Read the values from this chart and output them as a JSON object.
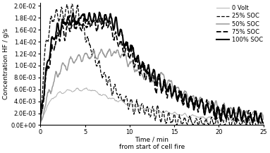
{
  "xlabel": "Time / min\nfrom start of cell fire",
  "ylabel": "Concentration HF / g/s",
  "xlim": [
    0,
    25
  ],
  "ylim": [
    0,
    0.0205
  ],
  "xticks": [
    0,
    5,
    10,
    15,
    20,
    25
  ],
  "ytick_vals": [
    0.0,
    0.002,
    0.004,
    0.006,
    0.008,
    0.01,
    0.012,
    0.014,
    0.016,
    0.018,
    0.02
  ],
  "ytick_labels": [
    "0.0E+00",
    "2.0E-03",
    "4.0E-03",
    "6.0E-03",
    "8.0E-03",
    "1.0E-02",
    "1.2E-02",
    "1.4E-02",
    "1.6E-02",
    "1.8E-02",
    "2.0E-02"
  ],
  "legend_labels": [
    "0 Volt",
    "25% SOC",
    "50% SOC",
    "75% SOC",
    "100% SOC"
  ],
  "line_colors": [
    "#b0b0b0",
    "#000000",
    "#999999",
    "#000000",
    "#000000"
  ],
  "line_styles": [
    "-",
    "--",
    "-",
    "--",
    "-"
  ],
  "line_widths": [
    0.7,
    0.9,
    1.1,
    1.3,
    1.5
  ],
  "background_color": "#ffffff",
  "figsize": [
    3.83,
    2.17
  ],
  "dpi": 100
}
